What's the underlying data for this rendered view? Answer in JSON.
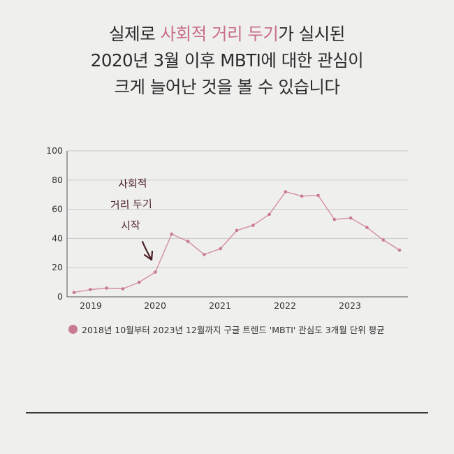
{
  "headline": {
    "line1_prefix": "실제로 ",
    "line1_accent": "사회적 거리 두기",
    "line1_suffix": "가 실시된",
    "line2": "2020년 3월 이후 MBTI에 대한 관심이",
    "line3": "크게 늘어난 것을 볼 수 있습니다"
  },
  "colors": {
    "accent": "#c96e86",
    "line": "#d48ea0",
    "marker": "#c87a8e",
    "grid": "#c9c9c9",
    "annotation_text": "#4a1f24"
  },
  "annotation": {
    "lines": [
      "사회적",
      "거리 두기",
      "시작"
    ],
    "icon": "arrow-down-right-icon"
  },
  "legend": {
    "label": "2018년 10월부터 2023년 12월까지 구글 트렌드 'MBTI' 관심도 3개월 단위 평균",
    "marker_color": "#c87a8e"
  },
  "chart_data": {
    "type": "line",
    "x_ticks": [
      "2019",
      "2020",
      "2021",
      "2022",
      "2023"
    ],
    "y_ticks": [
      0,
      20,
      40,
      60,
      80,
      100
    ],
    "ylim": [
      0,
      100
    ],
    "grid": true,
    "legend_position": "bottom-left",
    "series": [
      {
        "x": [
          "2018-Q4",
          "2019-Q1",
          "2019-Q2",
          "2019-Q3",
          "2019-Q4",
          "2020-Q1",
          "2020-Q2",
          "2020-Q3",
          "2020-Q4",
          "2021-Q1",
          "2021-Q2",
          "2021-Q3",
          "2021-Q4",
          "2022-Q1",
          "2022-Q2",
          "2022-Q3",
          "2022-Q4",
          "2023-Q1",
          "2023-Q2",
          "2023-Q3",
          "2023-Q4"
        ],
        "values": [
          3,
          5,
          6,
          5.5,
          10,
          17,
          43,
          38,
          29,
          33,
          45.5,
          49,
          56.5,
          72,
          69,
          69.5,
          53,
          54,
          47.5,
          39,
          32
        ]
      }
    ]
  }
}
